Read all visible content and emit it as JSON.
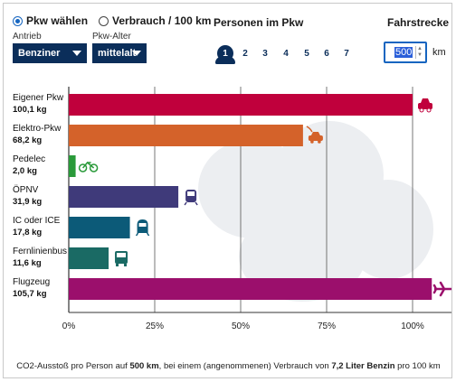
{
  "controls": {
    "mode_options": [
      {
        "label": "Pkw wählen",
        "checked": true
      },
      {
        "label": "Verbrauch / 100 km",
        "checked": false
      }
    ],
    "antrieb_label": "Antrieb",
    "antrieb_value": "Benziner",
    "alter_label": "Pkw-Alter",
    "alter_value": "mittelalt",
    "persons_title": "Personen im Pkw",
    "persons": [
      "1",
      "2",
      "3",
      "4",
      "5",
      "6",
      "7"
    ],
    "persons_selected": "1",
    "distance_title": "Fahrstrecke",
    "distance_value": "500",
    "distance_unit": "km"
  },
  "chart_data": {
    "type": "bar",
    "orientation": "horizontal",
    "categories": [
      "Eigener Pkw",
      "Elektro-Pkw",
      "Pedelec",
      "ÖPNV",
      "IC oder ICE",
      "Fernlinienbus",
      "Flugzeug"
    ],
    "value_labels": [
      "100,1 kg",
      "68,2 kg",
      "2,0 kg",
      "31,9 kg",
      "17,8 kg",
      "11,6 kg",
      "105,7 kg"
    ],
    "values": [
      100.1,
      68.2,
      2.0,
      31.9,
      17.8,
      11.6,
      105.7
    ],
    "unit": "kg",
    "colors": [
      "#c0003c",
      "#d4622a",
      "#2a9a3a",
      "#3f3a7a",
      "#0c5a78",
      "#1a6a64",
      "#9b0f6c"
    ],
    "icons": [
      "car-icon",
      "electric-car-icon",
      "bicycle-icon",
      "tram-icon",
      "train-icon",
      "bus-icon",
      "airplane-icon"
    ],
    "reference_value": 100.1,
    "xlim": [
      0,
      110
    ],
    "x_ticks": [
      {
        "label": "0%",
        "value": 0
      },
      {
        "label": "25%",
        "value": 25
      },
      {
        "label": "50%",
        "value": 50
      },
      {
        "label": "75%",
        "value": 75
      },
      {
        "label": "100%",
        "value": 100
      }
    ],
    "grid": true,
    "caption": {
      "p1": "CO2-Ausstoß pro Person auf ",
      "b1": "500 km",
      "p2": ", bei einem (angenommenen) Verbrauch von ",
      "b2": "7,2 Liter Benzin",
      "p3": " pro 100 km"
    }
  }
}
